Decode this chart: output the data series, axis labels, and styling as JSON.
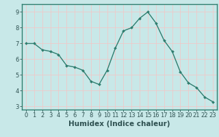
{
  "x": [
    0,
    1,
    2,
    3,
    4,
    5,
    6,
    7,
    8,
    9,
    10,
    11,
    12,
    13,
    14,
    15,
    16,
    17,
    18,
    19,
    20,
    21,
    22,
    23
  ],
  "y": [
    7.0,
    7.0,
    6.6,
    6.5,
    6.3,
    5.6,
    5.5,
    5.3,
    4.6,
    4.4,
    5.3,
    6.7,
    7.8,
    8.0,
    8.6,
    9.0,
    8.3,
    7.2,
    6.5,
    5.2,
    4.5,
    4.2,
    3.6,
    3.3
  ],
  "line_color": "#2e7d6e",
  "marker": "D",
  "marker_size": 2.0,
  "bg_color": "#c8e8e8",
  "grid_color": "#e8f8f8",
  "axis_color": "#2e7d6e",
  "tick_color": "#2e5050",
  "xlabel": "Humidex (Indice chaleur)",
  "xlabel_fontsize": 7.5,
  "tick_fontsize": 6.0,
  "ylim": [
    2.8,
    9.5
  ],
  "yticks": [
    3,
    4,
    5,
    6,
    7,
    8,
    9
  ],
  "xlim": [
    -0.5,
    23.5
  ],
  "xticks": [
    0,
    1,
    2,
    3,
    4,
    5,
    6,
    7,
    8,
    9,
    10,
    11,
    12,
    13,
    14,
    15,
    16,
    17,
    18,
    19,
    20,
    21,
    22,
    23
  ]
}
